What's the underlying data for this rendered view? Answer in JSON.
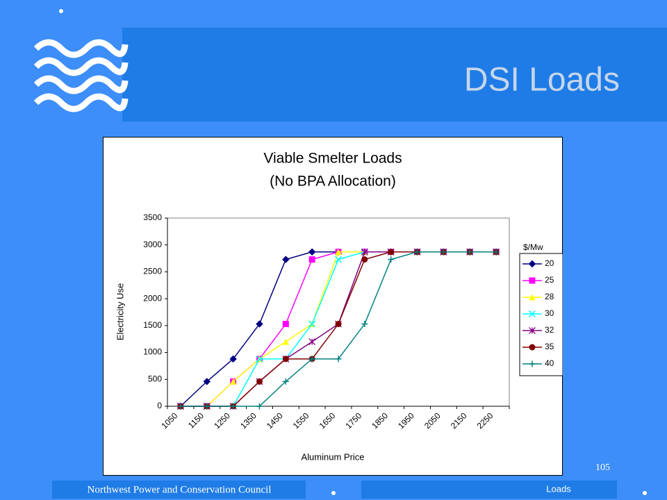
{
  "slide": {
    "title": "DSI Loads",
    "page_number": "105",
    "footer_left": "Northwest Power and Conservation Council",
    "footer_right": "Loads"
  },
  "chart_data": {
    "type": "line",
    "title": [
      "Viable Smelter Loads",
      "(No BPA Allocation)"
    ],
    "x_label": "Aluminum Price",
    "y_label": "Electricity Use",
    "legend_title": "$/Mw",
    "legend": "right",
    "categories": [
      "1050",
      "1150",
      "1250",
      "1350",
      "1450",
      "1550",
      "1650",
      "1750",
      "1850",
      "1950",
      "2050",
      "2150",
      "2250"
    ],
    "ylim": [
      0,
      3500
    ],
    "yticks": [
      0,
      500,
      1000,
      1500,
      2000,
      2500,
      3000,
      3500
    ],
    "series": [
      {
        "name": "20",
        "color": "#000080",
        "marker": "diamond",
        "values": [
          0,
          460,
          880,
          1530,
          2730,
          2870,
          2870,
          2870,
          2870,
          2870,
          2870,
          2870,
          2870
        ]
      },
      {
        "name": "25",
        "color": "#ff00ff",
        "marker": "square",
        "values": [
          0,
          0,
          460,
          880,
          1530,
          2730,
          2870,
          2870,
          2870,
          2870,
          2870,
          2870,
          2870
        ]
      },
      {
        "name": "28",
        "color": "#ffff00",
        "marker": "triangle",
        "values": [
          0,
          0,
          460,
          880,
          1200,
          1530,
          2870,
          2870,
          2870,
          2870,
          2870,
          2870,
          2870
        ]
      },
      {
        "name": "30",
        "color": "#00ffff",
        "marker": "x",
        "values": [
          0,
          0,
          0,
          880,
          880,
          1530,
          2730,
          2870,
          2870,
          2870,
          2870,
          2870,
          2870
        ]
      },
      {
        "name": "32",
        "color": "#800080",
        "marker": "star",
        "values": [
          0,
          0,
          0,
          460,
          880,
          1200,
          1530,
          2870,
          2870,
          2870,
          2870,
          2870,
          2870
        ]
      },
      {
        "name": "35",
        "color": "#800000",
        "marker": "circle",
        "values": [
          0,
          0,
          0,
          460,
          880,
          880,
          1530,
          2730,
          2870,
          2870,
          2870,
          2870,
          2870
        ]
      },
      {
        "name": "40",
        "color": "#008080",
        "marker": "plus",
        "values": [
          0,
          0,
          0,
          0,
          460,
          880,
          880,
          1530,
          2730,
          2870,
          2870,
          2870,
          2870
        ]
      }
    ]
  }
}
